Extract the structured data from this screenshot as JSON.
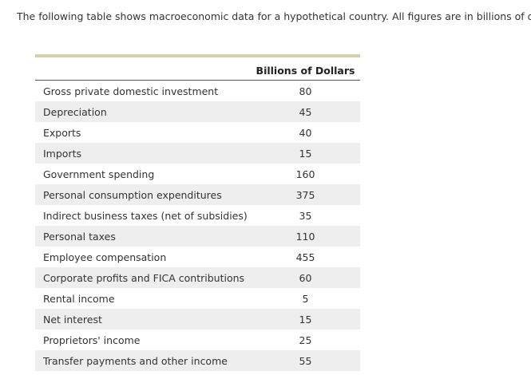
{
  "intro_text": "The following table shows macroeconomic data for a hypothetical country. All figures are in billions of dolla",
  "table": {
    "column_header": "Billions of Dollars",
    "rows": [
      {
        "label": "Gross private domestic investment",
        "value": "80"
      },
      {
        "label": "Depreciation",
        "value": "45"
      },
      {
        "label": "Exports",
        "value": "40"
      },
      {
        "label": "Imports",
        "value": "15"
      },
      {
        "label": "Government spending",
        "value": "160"
      },
      {
        "label": "Personal consumption expenditures",
        "value": "375"
      },
      {
        "label": "Indirect business taxes (net of subsidies)",
        "value": "35"
      },
      {
        "label": "Personal taxes",
        "value": "110"
      },
      {
        "label": "Employee compensation",
        "value": "455"
      },
      {
        "label": "Corporate profits and FICA contributions",
        "value": "60"
      },
      {
        "label": "Rental income",
        "value": "5"
      },
      {
        "label": "Net interest",
        "value": "15"
      },
      {
        "label": "Proprietors' income",
        "value": "25"
      },
      {
        "label": "Transfer payments and other income",
        "value": "55"
      }
    ]
  }
}
